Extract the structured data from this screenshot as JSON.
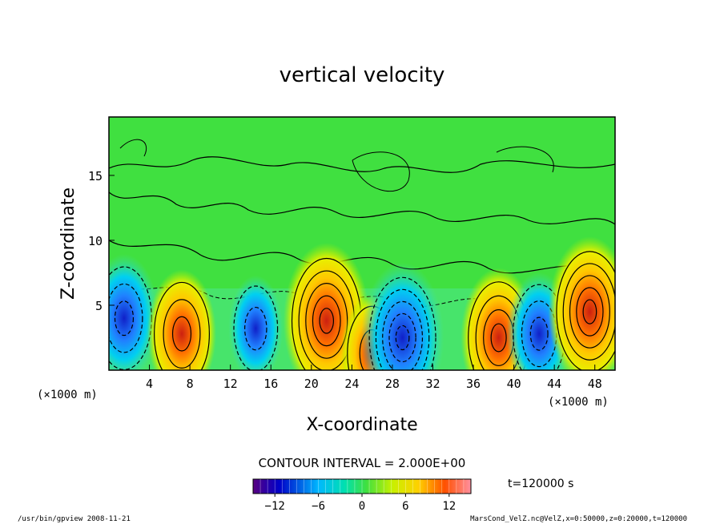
{
  "chart_data": {
    "type": "heatmap",
    "title": "vertical velocity",
    "xlabel": "X-coordinate",
    "ylabel": "Z-coordinate",
    "x_unit_left": "(×1000 m)",
    "x_unit_right": "(×1000 m)",
    "xlim": [
      0,
      50
    ],
    "ylim": [
      0,
      19.5
    ],
    "x_ticks": [
      4,
      8,
      12,
      16,
      20,
      24,
      28,
      32,
      36,
      40,
      44,
      48
    ],
    "y_ticks": [
      5,
      10,
      15
    ],
    "contour_interval_text": "CONTOUR INTERVAL = 2.000E+00",
    "time_text": "t=120000 s",
    "colorbar": {
      "range": [
        -15,
        15
      ],
      "ticks": [
        -12,
        -6,
        0,
        6,
        12
      ]
    },
    "features": [
      {
        "x": 1.5,
        "z": 4.0,
        "value": -8
      },
      {
        "x": 7.2,
        "z": 2.8,
        "value": 8
      },
      {
        "x": 14.5,
        "z": 3.2,
        "value": -4
      },
      {
        "x": 21.5,
        "z": 3.8,
        "value": 13
      },
      {
        "x": 26.0,
        "z": 1.3,
        "value": 6
      },
      {
        "x": 29.0,
        "z": 2.5,
        "value": -12
      },
      {
        "x": 38.5,
        "z": 2.5,
        "value": 10
      },
      {
        "x": 42.5,
        "z": 2.8,
        "value": -7
      },
      {
        "x": 47.5,
        "z": 4.5,
        "value": 12
      }
    ],
    "footer_left": "/usr/bin/gpview   2008-11-21",
    "footer_right": "MarsCond_VelZ.nc@VelZ,x=0:50000,z=0:20000,t=120000"
  },
  "colors": {
    "background_field": "#40e040",
    "positive_core": "#e23a20",
    "negative_core": "#1428d0"
  }
}
